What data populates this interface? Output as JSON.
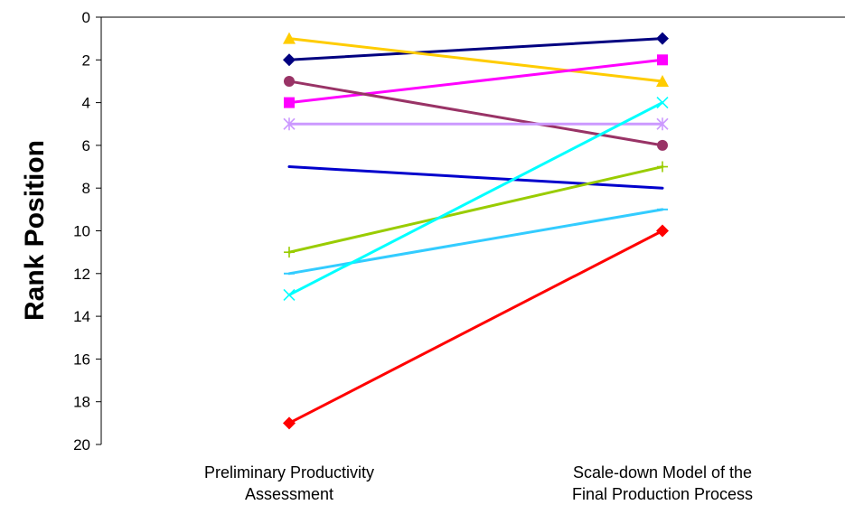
{
  "chart_data": {
    "type": "line",
    "ylabel": "Rank Position",
    "xlabel": "",
    "y_inverted": true,
    "ylim": [
      0,
      20
    ],
    "yticks": [
      0,
      2,
      4,
      6,
      8,
      10,
      12,
      14,
      16,
      18,
      20
    ],
    "ytick_labels": [
      "0",
      "2",
      "4",
      "6",
      "8",
      "10",
      "12",
      "14",
      "16",
      "18",
      "20"
    ],
    "categories": [
      [
        "Preliminary Productivity",
        "Assessment"
      ],
      [
        "Scale-down Model of the",
        "Final Production Process"
      ]
    ],
    "grid": false,
    "series": [
      {
        "color": "#000080",
        "marker": "diamond",
        "values": [
          2,
          1
        ]
      },
      {
        "color": "#FFCC00",
        "marker": "triangle",
        "values": [
          1,
          3
        ]
      },
      {
        "color": "#FF00FF",
        "marker": "square",
        "values": [
          4,
          2
        ]
      },
      {
        "color": "#993366",
        "marker": "circle",
        "values": [
          3,
          6
        ]
      },
      {
        "color": "#CC99FF",
        "marker": "asterisk",
        "values": [
          5,
          5
        ]
      },
      {
        "color": "#0000CC",
        "marker": "none",
        "values": [
          7,
          8
        ]
      },
      {
        "color": "#99CC00",
        "marker": "plus",
        "values": [
          11,
          7
        ]
      },
      {
        "color": "#33CCFF",
        "marker": "dash",
        "values": [
          12,
          9
        ]
      },
      {
        "color": "#00FFFF",
        "marker": "x",
        "values": [
          13,
          4
        ]
      },
      {
        "color": "#FF0000",
        "marker": "diamond",
        "values": [
          19,
          10
        ]
      }
    ]
  }
}
